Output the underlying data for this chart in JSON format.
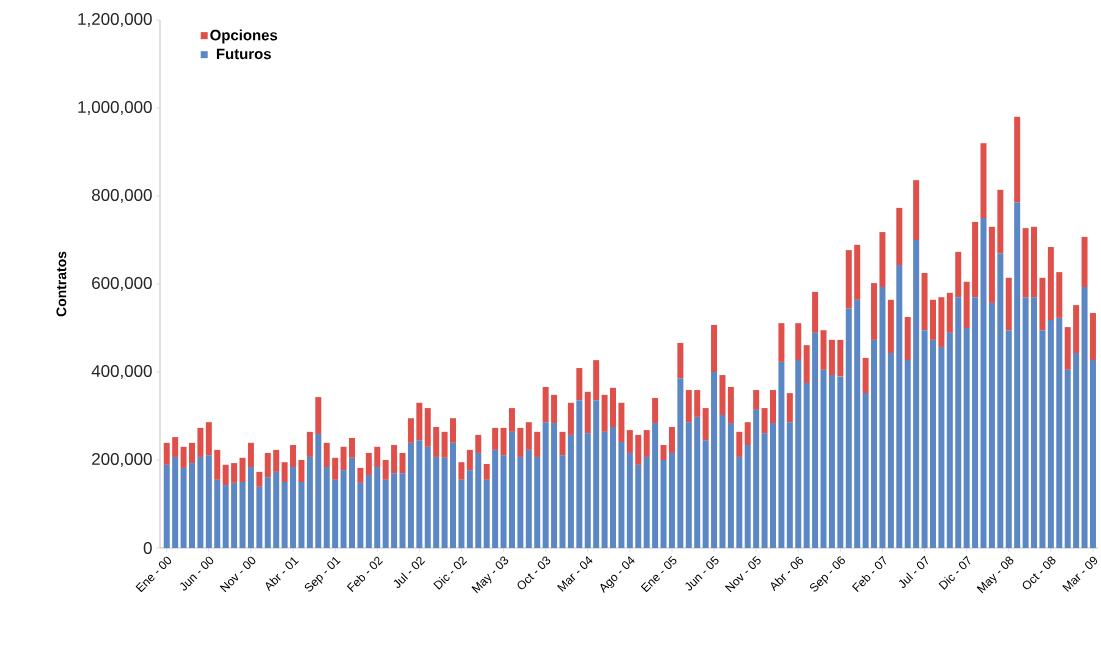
{
  "chart_data": {
    "type": "bar",
    "stacked": true,
    "ylabel": "Contratos",
    "legend": "top left",
    "categories": [
      "Ene - 00",
      null,
      null,
      null,
      null,
      "Jun - 00",
      null,
      null,
      null,
      null,
      "Nov - 00",
      null,
      null,
      null,
      null,
      "Abr - 01",
      null,
      null,
      null,
      null,
      "Sep - 01",
      null,
      null,
      null,
      null,
      "Feb - 02",
      null,
      null,
      null,
      null,
      "Jul - 02",
      null,
      null,
      null,
      null,
      "Dic - 02",
      null,
      null,
      null,
      null,
      "May - 03",
      null,
      null,
      null,
      null,
      "Oct - 03",
      null,
      null,
      null,
      null,
      "Mar - 04",
      null,
      null,
      null,
      null,
      "Ago - 04",
      null,
      null,
      null,
      null,
      "Ene - 05",
      null,
      null,
      null,
      null,
      "Jun - 05",
      null,
      null,
      null,
      null,
      "Nov - 05",
      null,
      null,
      null,
      null,
      "Abr - 06",
      null,
      null,
      null,
      null,
      "Sep - 06",
      null,
      null,
      null,
      null,
      "Feb - 07",
      null,
      null,
      null,
      null,
      "Jul - 07",
      null,
      null,
      null,
      null,
      "Dic - 07",
      null,
      null,
      null,
      null,
      "May - 08",
      null,
      null,
      null,
      null,
      "Oct - 08",
      null,
      null,
      null,
      null,
      "Mar - 09"
    ],
    "ylim": [
      0,
      1200000
    ],
    "yticks": [
      {
        "value": 0,
        "label": "0"
      },
      {
        "value": 200000,
        "label": "200,000"
      },
      {
        "value": 400000,
        "label": "400,000"
      },
      {
        "value": 600000,
        "label": "600,000"
      },
      {
        "value": 800000,
        "label": "800,000"
      },
      {
        "value": 1000000,
        "label": "1,000,000"
      },
      {
        "value": 1200000,
        "label": "1,200,000"
      }
    ],
    "series": [
      {
        "name": "Futuros",
        "color": "#5b87c5",
        "values": [
          189000,
          207000,
          182000,
          193000,
          207000,
          211000,
          155000,
          143000,
          148000,
          150000,
          184000,
          139000,
          161000,
          173000,
          150000,
          184000,
          150000,
          207000,
          259000,
          184000,
          155000,
          177000,
          205000,
          148000,
          166000,
          184000,
          155000,
          170000,
          170000,
          239000,
          245000,
          230000,
          207000,
          205000,
          239000,
          155000,
          177000,
          216000,
          155000,
          223000,
          211000,
          264000,
          207000,
          223000,
          207000,
          286000,
          284000,
          211000,
          257000,
          336000,
          261000,
          336000,
          264000,
          275000,
          241000,
          216000,
          189000,
          207000,
          284000,
          200000,
          216000,
          386000,
          286000,
          298000,
          245000,
          400000,
          302000,
          284000,
          207000,
          234000,
          314000,
          261000,
          284000,
          423000,
          286000,
          427000,
          375000,
          489000,
          405000,
          393000,
          390000,
          545000,
          564000,
          352000,
          473000,
          593000,
          443000,
          643000,
          427000,
          700000,
          495000,
          473000,
          457000,
          489000,
          570000,
          500000,
          570000,
          750000,
          557000,
          670000,
          495000,
          786000,
          570000,
          570000,
          495000,
          518000,
          523000,
          405000,
          443000,
          593000,
          427000
        ]
      },
      {
        "name": "Opciones",
        "color": "#e0504a",
        "values": [
          50000,
          45000,
          48000,
          46000,
          66000,
          75000,
          68000,
          46000,
          45000,
          55000,
          55000,
          34000,
          55000,
          50000,
          45000,
          50000,
          50000,
          57000,
          84000,
          55000,
          50000,
          53000,
          45000,
          34000,
          50000,
          46000,
          45000,
          64000,
          46000,
          56000,
          85000,
          88000,
          68000,
          59000,
          56000,
          40000,
          46000,
          41000,
          36000,
          50000,
          62000,
          54000,
          66000,
          63000,
          57000,
          80000,
          64000,
          53000,
          73000,
          73000,
          94000,
          91000,
          84000,
          89000,
          89000,
          52000,
          68000,
          61000,
          57000,
          34000,
          59000,
          80000,
          73000,
          61000,
          73000,
          107000,
          91000,
          82000,
          57000,
          52000,
          45000,
          57000,
          75000,
          88000,
          66000,
          84000,
          86000,
          93000,
          90000,
          80000,
          83000,
          132000,
          125000,
          80000,
          129000,
          125000,
          121000,
          130000,
          98000,
          136000,
          130000,
          91000,
          113000,
          91000,
          103000,
          105000,
          171000,
          170000,
          173000,
          144000,
          119000,
          194000,
          157000,
          160000,
          119000,
          166000,
          104000,
          97000,
          109000,
          114000,
          107000
        ]
      }
    ]
  }
}
